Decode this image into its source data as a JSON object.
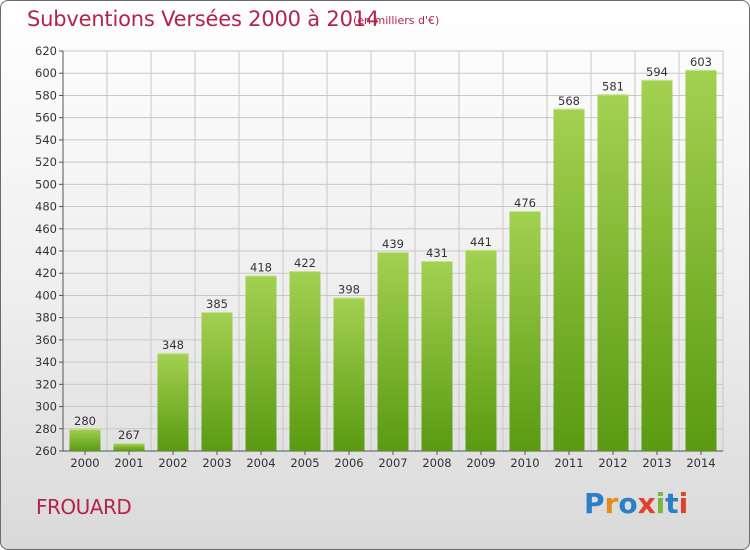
{
  "header": {
    "title": "Subventions Versées 2000 à 2014",
    "subtitle": "(en milliers d'€)"
  },
  "footer": {
    "town": "FROUARD",
    "logo_text": "Proxiti"
  },
  "colors": {
    "title": "#b5234d",
    "bar_top": "#a3d151",
    "bar_bottom": "#5a9a12",
    "grid": "#c8c8c8"
  },
  "chart_data": {
    "type": "bar",
    "categories": [
      "2000",
      "2001",
      "2002",
      "2003",
      "2004",
      "2005",
      "2006",
      "2007",
      "2008",
      "2009",
      "2010",
      "2011",
      "2012",
      "2013",
      "2014"
    ],
    "values": [
      280,
      267,
      348,
      385,
      418,
      422,
      398,
      439,
      431,
      441,
      476,
      568,
      581,
      594,
      603
    ],
    "data_labels": [
      "280",
      "267",
      "348",
      "385",
      "418",
      "422",
      "398",
      "439",
      "431",
      "441",
      "476",
      "568",
      "581",
      "594",
      "603"
    ],
    "ylim": [
      260,
      620
    ],
    "yticks": [
      260,
      280,
      300,
      320,
      340,
      360,
      380,
      400,
      420,
      440,
      460,
      480,
      500,
      520,
      540,
      560,
      580,
      600,
      620
    ],
    "grid": true,
    "legend": "none"
  }
}
